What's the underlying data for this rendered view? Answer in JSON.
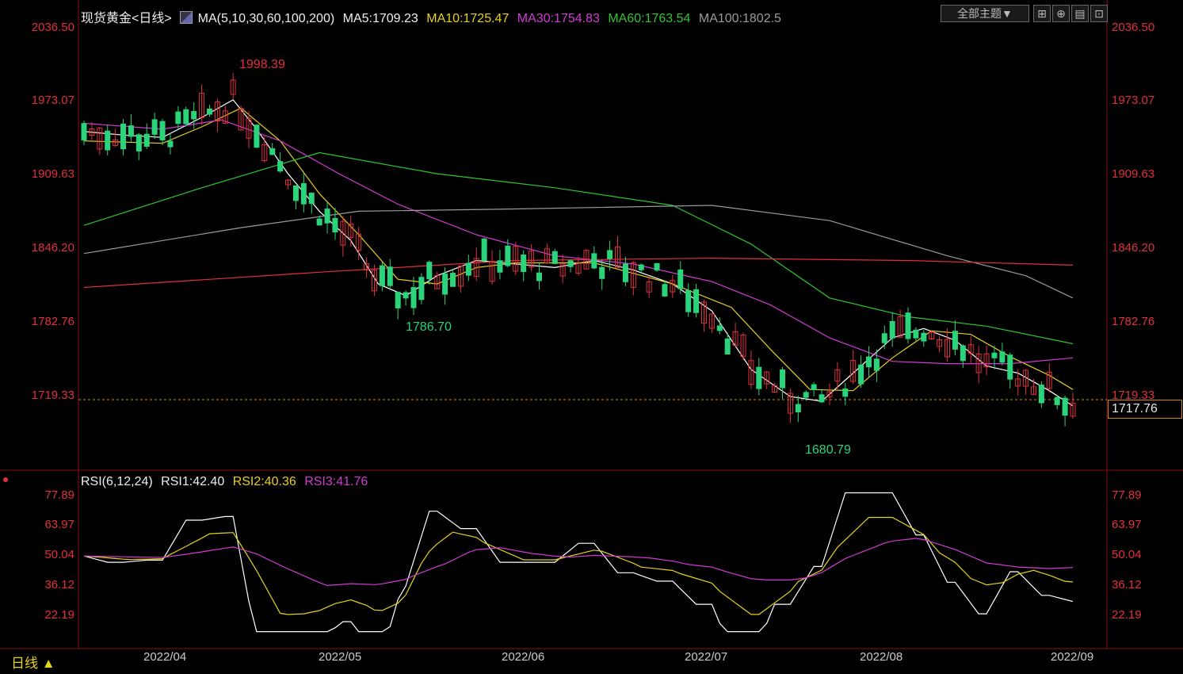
{
  "header": {
    "symbol": "现货黄金<日线>",
    "ma_label": "MA(5,10,30,60,100,200)",
    "ma5": "MA5:1709.23",
    "ma10": "MA10:1725.47",
    "ma30": "MA30:1754.83",
    "ma60": "MA60:1763.54",
    "ma100": "MA100:1802.5",
    "theme_btn": "全部主题▼"
  },
  "colors": {
    "up": "#e0303c",
    "down": "#2bd47a",
    "ma5": "#ffffff",
    "ma10": "#e6d21a",
    "ma30": "#d23ad6",
    "ma60": "#2ec52e",
    "ma100": "#9a9a9a",
    "ma200": "#e0303c"
  },
  "price_axis": {
    "ticks": [
      "2036.50",
      "1973.07",
      "1909.63",
      "1846.20",
      "1782.76",
      "1719.33"
    ],
    "current_price": "1717.76"
  },
  "annotations": {
    "high": "1998.39",
    "low1": "1786.70",
    "low2": "1680.79"
  },
  "rsi": {
    "label": "RSI(6,12,24)",
    "rsi1": "RSI1:42.40",
    "rsi2": "RSI2:40.36",
    "rsi3": "RSI3:41.76",
    "ticks": [
      "77.89",
      "63.97",
      "50.04",
      "36.12",
      "22.19"
    ]
  },
  "x_axis": [
    "2022/04",
    "2022/05",
    "2022/06",
    "2022/07",
    "2022/08",
    "2022/09"
  ],
  "period_tab": "日线 ▲",
  "chart_data": {
    "type": "line",
    "title": "现货黄金<日线>",
    "ylim": [
      1650,
      2045
    ],
    "ma_series": [
      {
        "name": "MA5",
        "points": [
          [
            0,
            1948
          ],
          [
            10,
            1945
          ],
          [
            20,
            1943
          ],
          [
            30,
            1960
          ],
          [
            38,
            1975
          ],
          [
            44,
            1950
          ],
          [
            52,
            1912
          ],
          [
            60,
            1880
          ],
          [
            68,
            1855
          ],
          [
            75,
            1818
          ],
          [
            82,
            1808
          ],
          [
            90,
            1825
          ],
          [
            100,
            1838
          ],
          [
            110,
            1835
          ],
          [
            120,
            1832
          ],
          [
            130,
            1838
          ],
          [
            140,
            1830
          ],
          [
            150,
            1818
          ],
          [
            160,
            1795
          ],
          [
            170,
            1745
          ],
          [
            180,
            1722
          ],
          [
            188,
            1718
          ],
          [
            196,
            1742
          ],
          [
            206,
            1772
          ],
          [
            214,
            1780
          ],
          [
            222,
            1770
          ],
          [
            230,
            1748
          ],
          [
            238,
            1742
          ],
          [
            246,
            1727
          ],
          [
            252,
            1714
          ]
        ]
      },
      {
        "name": "MA10",
        "points": [
          [
            0,
            1940
          ],
          [
            20,
            1938
          ],
          [
            30,
            1952
          ],
          [
            40,
            1968
          ],
          [
            50,
            1940
          ],
          [
            60,
            1895
          ],
          [
            70,
            1860
          ],
          [
            80,
            1822
          ],
          [
            90,
            1818
          ],
          [
            100,
            1832
          ],
          [
            110,
            1836
          ],
          [
            130,
            1836
          ],
          [
            150,
            1818
          ],
          [
            165,
            1798
          ],
          [
            175,
            1762
          ],
          [
            185,
            1728
          ],
          [
            196,
            1727
          ],
          [
            206,
            1755
          ],
          [
            216,
            1778
          ],
          [
            226,
            1775
          ],
          [
            236,
            1756
          ],
          [
            246,
            1740
          ],
          [
            252,
            1728
          ]
        ]
      },
      {
        "name": "MA30",
        "points": [
          [
            0,
            1955
          ],
          [
            20,
            1950
          ],
          [
            35,
            1958
          ],
          [
            50,
            1940
          ],
          [
            65,
            1912
          ],
          [
            80,
            1886
          ],
          [
            100,
            1860
          ],
          [
            120,
            1842
          ],
          [
            140,
            1835
          ],
          [
            160,
            1820
          ],
          [
            175,
            1800
          ],
          [
            190,
            1772
          ],
          [
            206,
            1752
          ],
          [
            220,
            1750
          ],
          [
            236,
            1750
          ],
          [
            252,
            1755
          ]
        ]
      },
      {
        "name": "MA60",
        "points": [
          [
            0,
            1868
          ],
          [
            30,
            1900
          ],
          [
            60,
            1930
          ],
          [
            90,
            1912
          ],
          [
            120,
            1900
          ],
          [
            150,
            1885
          ],
          [
            170,
            1852
          ],
          [
            190,
            1806
          ],
          [
            210,
            1790
          ],
          [
            230,
            1782
          ],
          [
            252,
            1767
          ]
        ]
      },
      {
        "name": "MA100",
        "points": [
          [
            0,
            1844
          ],
          [
            40,
            1866
          ],
          [
            70,
            1880
          ],
          [
            110,
            1882
          ],
          [
            160,
            1885
          ],
          [
            190,
            1872
          ],
          [
            220,
            1842
          ],
          [
            240,
            1825
          ],
          [
            252,
            1806
          ]
        ]
      },
      {
        "name": "MA200",
        "points": [
          [
            0,
            1815
          ],
          [
            60,
            1828
          ],
          [
            110,
            1838
          ],
          [
            160,
            1840
          ],
          [
            210,
            1838
          ],
          [
            252,
            1834
          ]
        ]
      }
    ]
  }
}
